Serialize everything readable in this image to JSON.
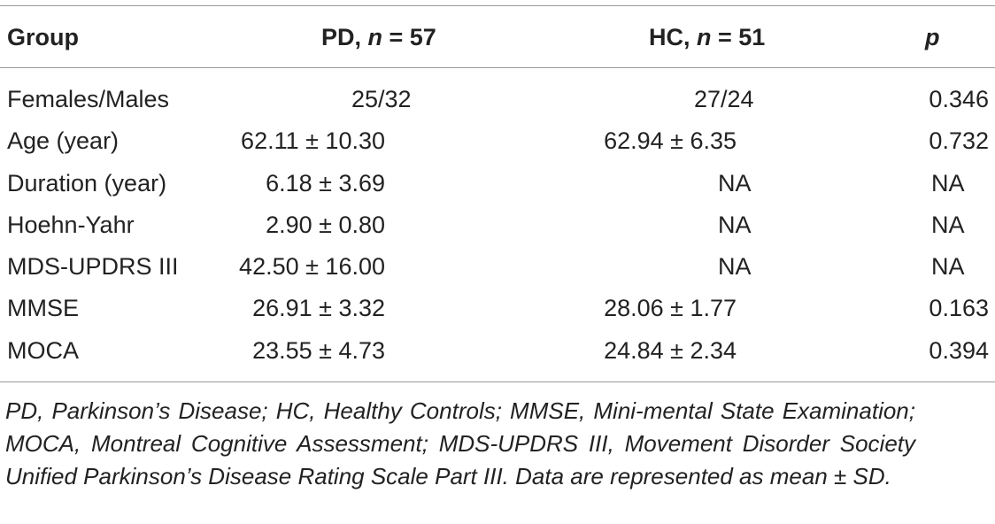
{
  "table": {
    "headers": {
      "group": "Group",
      "pd_prefix": "PD, ",
      "pd_n": "n",
      "pd_suffix": " = 57",
      "hc_prefix": "HC, ",
      "hc_n": "n",
      "hc_suffix": " = 51",
      "p": "p"
    },
    "rows": [
      {
        "group": "Females/Males",
        "pd": "25/32",
        "hc": "27/24",
        "p": "0.346"
      },
      {
        "group": "Age (year)",
        "pd": "62.11 ± 10.30",
        "hc": "62.94 ± 6.35",
        "p": "0.732"
      },
      {
        "group": "Duration (year)",
        "pd": "6.18 ± 3.69",
        "hc": "NA",
        "p": "NA"
      },
      {
        "group": "Hoehn-Yahr",
        "pd": "2.90 ± 0.80",
        "hc": "NA",
        "p": "NA"
      },
      {
        "group": "MDS-UPDRS III",
        "pd": "42.50 ± 16.00",
        "hc": "NA",
        "p": "NA"
      },
      {
        "group": "MMSE",
        "pd": "26.91 ± 3.32",
        "hc": "28.06 ± 1.77",
        "p": "0.163"
      },
      {
        "group": "MOCA",
        "pd": "23.55 ± 4.73",
        "hc": "24.84 ± 2.34",
        "p": "0.394"
      }
    ]
  },
  "footnote": "PD, Parkinson’s Disease; HC, Healthy Controls; MMSE, Mini-mental State Examination; MOCA, Montreal Cognitive Assessment; MDS-UPDRS III, Movement Disorder Society Unified Parkinson’s Disease Rating Scale Part III. Data are represented as mean ± SD."
}
